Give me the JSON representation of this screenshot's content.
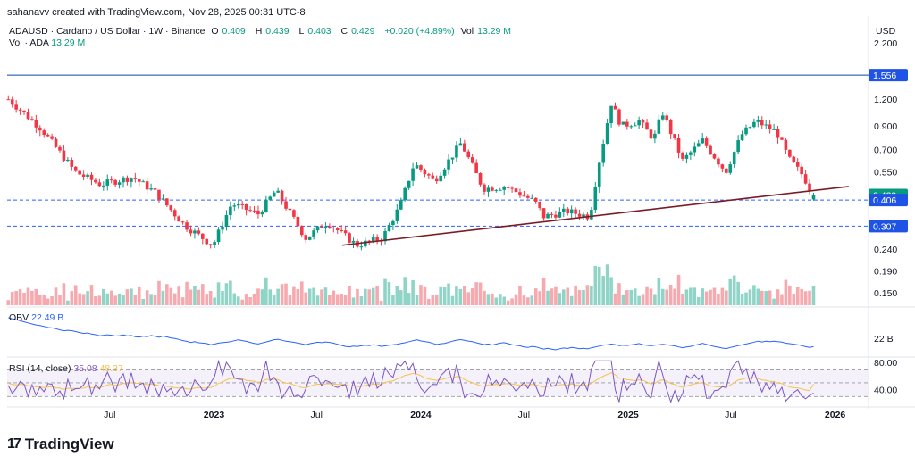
{
  "watermark": "sahanavv created with TradingView.com, Nov 28, 2025 00:31 UTC-8",
  "legend": {
    "symbol": "ADAUSD · Cardano / US Dollar · 1W · Binance",
    "o_label": "O",
    "o": "0.409",
    "h_label": "H",
    "h": "0.439",
    "l_label": "L",
    "l": "0.403",
    "c_label": "C",
    "c": "0.429",
    "change": "+0.020 (+4.89%)",
    "vol_label": "Vol",
    "vol": "13.29 M"
  },
  "vol_legend": {
    "label": "Vol · ADA",
    "value": "13.29 M"
  },
  "obv_legend": {
    "label": "OBV",
    "value": "22.49 B"
  },
  "rsi_legend": {
    "label": "RSI (14, close)",
    "value": "35.08",
    "ma": "48.37"
  },
  "currency": "USD",
  "brand": "TradingView",
  "colors": {
    "up": "#089981",
    "down": "#f23645",
    "vol_up": "#8fd4c7",
    "vol_down": "#f6a9ae",
    "obv": "#2962ff",
    "rsi": "#7e57c2",
    "rsi_ma": "#f5c24b",
    "trendline": "#7b1c24",
    "hline": "#0d47a1",
    "dashed": "#2962ff",
    "label_blue": "#1e53e5"
  },
  "chart_data": {
    "type": "candlestick",
    "title": "ADAUSD · Cardano / US Dollar · 1W · Binance",
    "x_ticks": [
      "Jul",
      "2023",
      "Jul",
      "2024",
      "Jul",
      "2025",
      "Jul",
      "2026"
    ],
    "y_ticks": [
      "2.200",
      "1.200",
      "0.900",
      "0.700",
      "0.550",
      "0.240",
      "0.190",
      "0.150"
    ],
    "y_scale": "log",
    "ylim": [
      0.13,
      2.4
    ],
    "price_labels": [
      {
        "text": "1.556",
        "value": 1.556,
        "style": "blue"
      },
      {
        "text": "0.429",
        "value": 0.429,
        "style": "green"
      },
      {
        "text": "0.406",
        "value": 0.406,
        "style": "blue"
      },
      {
        "text": "0.307",
        "value": 0.307,
        "style": "blue"
      }
    ],
    "horizontal_lines": [
      {
        "value": 1.556,
        "style": "solid"
      },
      {
        "value": 0.406,
        "style": "dashed"
      },
      {
        "value": 0.307,
        "style": "dashed"
      }
    ],
    "trendline": {
      "from": {
        "date": "2023-08-15",
        "value": 0.25
      },
      "to": {
        "date": "2026-01-25",
        "value": 0.47
      }
    },
    "weekly_close_path": [
      {
        "date": "2022-01-03",
        "value": 1.2
      },
      {
        "date": "2022-03-01",
        "value": 0.88
      },
      {
        "date": "2022-05-01",
        "value": 0.55
      },
      {
        "date": "2022-06-15",
        "value": 0.48
      },
      {
        "date": "2022-08-10",
        "value": 0.52
      },
      {
        "date": "2022-09-20",
        "value": 0.44
      },
      {
        "date": "2022-11-10",
        "value": 0.31
      },
      {
        "date": "2022-12-30",
        "value": 0.25
      },
      {
        "date": "2023-02-01",
        "value": 0.39
      },
      {
        "date": "2023-03-20",
        "value": 0.35
      },
      {
        "date": "2023-04-20",
        "value": 0.45
      },
      {
        "date": "2023-06-12",
        "value": 0.27
      },
      {
        "date": "2023-07-20",
        "value": 0.32
      },
      {
        "date": "2023-09-10",
        "value": 0.25
      },
      {
        "date": "2023-10-25",
        "value": 0.27
      },
      {
        "date": "2023-11-25",
        "value": 0.38
      },
      {
        "date": "2023-12-20",
        "value": 0.6
      },
      {
        "date": "2024-01-25",
        "value": 0.5
      },
      {
        "date": "2024-03-12",
        "value": 0.75
      },
      {
        "date": "2024-04-20",
        "value": 0.46
      },
      {
        "date": "2024-05-30",
        "value": 0.47
      },
      {
        "date": "2024-07-20",
        "value": 0.4
      },
      {
        "date": "2024-08-05",
        "value": 0.34
      },
      {
        "date": "2024-09-15",
        "value": 0.36
      },
      {
        "date": "2024-10-25",
        "value": 0.34
      },
      {
        "date": "2024-11-10",
        "value": 0.6
      },
      {
        "date": "2024-12-02",
        "value": 1.15
      },
      {
        "date": "2024-12-20",
        "value": 0.9
      },
      {
        "date": "2025-01-20",
        "value": 0.95
      },
      {
        "date": "2025-02-15",
        "value": 0.78
      },
      {
        "date": "2025-03-02",
        "value": 1.05
      },
      {
        "date": "2025-04-07",
        "value": 0.62
      },
      {
        "date": "2025-05-12",
        "value": 0.77
      },
      {
        "date": "2025-06-22",
        "value": 0.55
      },
      {
        "date": "2025-07-20",
        "value": 0.82
      },
      {
        "date": "2025-08-15",
        "value": 0.95
      },
      {
        "date": "2025-09-20",
        "value": 0.84
      },
      {
        "date": "2025-10-12",
        "value": 0.63
      },
      {
        "date": "2025-11-05",
        "value": 0.53
      },
      {
        "date": "2025-11-24",
        "value": 0.429
      }
    ],
    "volume_label": "Vol · ADA",
    "obv": {
      "label": "OBV",
      "last": "22.49 B",
      "axis_label": "22 B"
    },
    "rsi": {
      "label": "RSI (14, close)",
      "value": 35.08,
      "ma": 48.37,
      "levels": [
        70,
        30
      ],
      "axis_ticks": [
        "80.00",
        "40.00"
      ]
    }
  }
}
